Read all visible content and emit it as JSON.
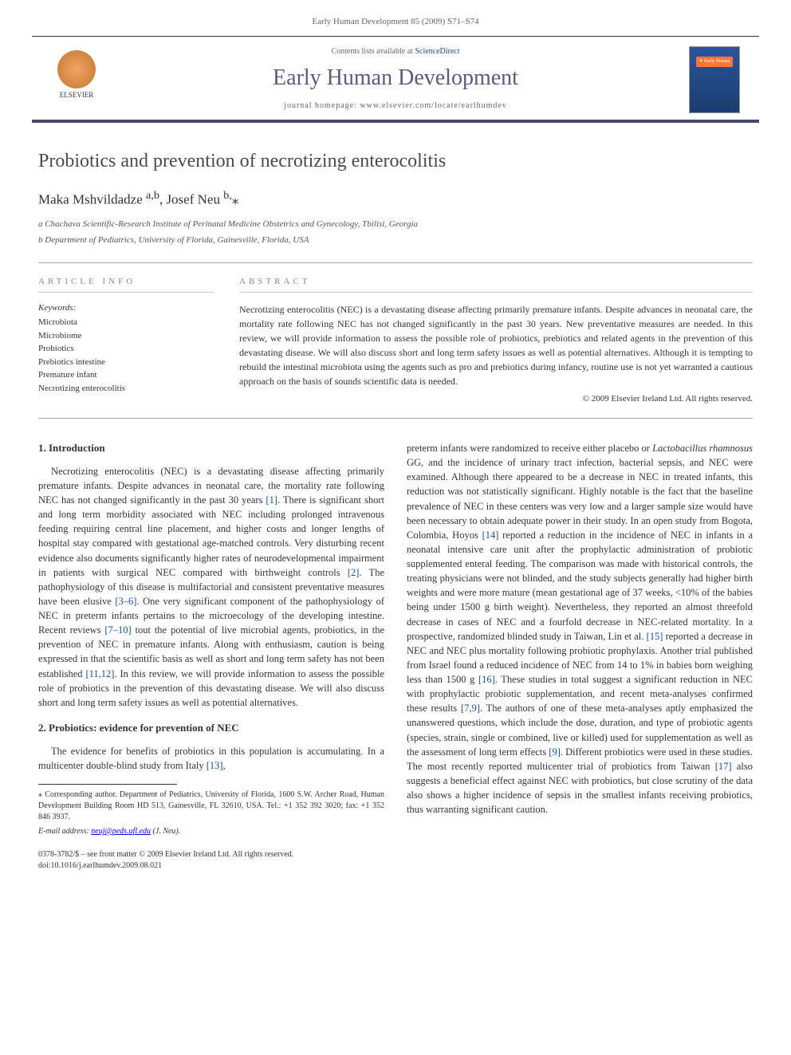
{
  "running_header": "Early Human Development 85 (2009) S71–S74",
  "banner": {
    "contents_line_prefix": "Contents lists available at ",
    "contents_link": "ScienceDirect",
    "journal_name": "Early Human Development",
    "homepage_prefix": "journal homepage: ",
    "homepage": "www.elsevier.com/locate/earlhumdev",
    "publisher": "ELSEVIER"
  },
  "article": {
    "title": "Probiotics and prevention of necrotizing enterocolitis",
    "authors_html": "Maka Mshvildadze <sup>a,b</sup>, Josef Neu <sup>b,</sup><span class='star'>⁎</span>",
    "affiliations": [
      "a Chachava Scientific-Research Institute of Perinatal Medicine Obstetrics and Gynecology, Tbilisi, Georgia",
      "b Department of Pediatrics, University of Florida, Gainesville, Florida, USA"
    ]
  },
  "info": {
    "heading": "ARTICLE INFO",
    "keywords_label": "Keywords:",
    "keywords": [
      "Microbiota",
      "Microbiome",
      "Probiotics",
      "Prebiotics intestine",
      "Premature infant",
      "Necrotizing enterocolitis"
    ]
  },
  "abstract": {
    "heading": "ABSTRACT",
    "text": "Necrotizing enterocolitis (NEC) is a devastating disease affecting primarily premature infants. Despite advances in neonatal care, the mortality rate following NEC has not changed significantly in the past 30 years. New preventative measures are needed. In this review, we will provide information to assess the possible role of probiotics, prebiotics and related agents in the prevention of this devastating disease. We will also discuss short and long term safety issues as well as potential alternatives. Although it is tempting to rebuild the intestinal microbiota using the agents such as pro and prebiotics during infancy, routine use is not yet warranted a cautious approach on the basis of sounds scientific data is needed.",
    "copyright": "© 2009 Elsevier Ireland Ltd. All rights reserved."
  },
  "body": {
    "section1": {
      "heading": "1. Introduction",
      "p1": "Necrotizing enterocolitis (NEC) is a devastating disease affecting primarily premature infants. Despite advances in neonatal care, the mortality rate following NEC has not changed significantly in the past 30 years [1]. There is significant short and long term morbidity associated with NEC including prolonged intravenous feeding requiring central line placement, and higher costs and longer lengths of hospital stay compared with gestational age-matched controls. Very disturbing recent evidence also documents significantly higher rates of neurodevelopmental impairment in patients with surgical NEC compared with birthweight controls [2]. The pathophysiology of this disease is multifactorial and consistent preventative measures have been elusive [3–6]. One very significant component of the pathophysiology of NEC in preterm infants pertains to the microecology of the developing intestine. Recent reviews [7–10] tout the potential of live microbial agents, probiotics, in the prevention of NEC in premature infants. Along with enthusiasm, caution is being expressed in that the scientific basis as well as short and long term safety has not been established [11,12]. In this review, we will provide information to assess the possible role of probiotics in the prevention of this devastating disease. We will also discuss short and long term safety issues as well as potential alternatives."
    },
    "section2": {
      "heading": "2. Probiotics: evidence for prevention of NEC",
      "p1": "The evidence for benefits of probiotics in this population is accumulating. In a multicenter double-blind study from Italy [13],",
      "p2": "preterm infants were randomized to receive either placebo or Lactobacillus rhamnosus GG, and the incidence of urinary tract infection, bacterial sepsis, and NEC were examined. Although there appeared to be a decrease in NEC in treated infants, this reduction was not statistically significant. Highly notable is the fact that the baseline prevalence of NEC in these centers was very low and a larger sample size would have been necessary to obtain adequate power in their study. In an open study from Bogota, Colombia, Hoyos [14] reported a reduction in the incidence of NEC in infants in a neonatal intensive care unit after the prophylactic administration of probiotic supplemented enteral feeding. The comparison was made with historical controls, the treating physicians were not blinded, and the study subjects generally had higher birth weights and were more mature (mean gestational age of 37 weeks, <10% of the babies being under 1500 g birth weight). Nevertheless, they reported an almost threefold decrease in cases of NEC and a fourfold decrease in NEC-related mortality. In a prospective, randomized blinded study in Taiwan, Lin et al. [15] reported a decrease in NEC and NEC plus mortality following probiotic prophylaxis. Another trial published from Israel found a reduced incidence of NEC from 14 to 1% in babies born weighing less than 1500 g [16]. These studies in total suggest a significant reduction in NEC with prophylactic probiotic supplementation, and recent meta-analyses confirmed these results [7,9]. The authors of one of these meta-analyses aptly emphasized the unanswered questions, which include the dose, duration, and type of probiotic agents (species, strain, single or combined, live or killed) used for supplementation as well as the assessment of long term effects [9]. Different probiotics were used in these studies. The most recently reported multicenter trial of probiotics from Taiwan [17] also suggests a beneficial effect against NEC with probiotics, but close scrutiny of the data also shows a higher incidence of sepsis in the smallest infants receiving probiotics, thus warranting significant caution."
    }
  },
  "footnote": {
    "corr": "⁎ Corresponding author. Department of Pediatrics, University of Florida, 1600 S.W. Archer Road, Human Development Building Room HD 513, Gainesville, FL 32610, USA. Tel.: +1 352 392 3020; fax: +1 352 846 3937.",
    "email_label": "E-mail address:",
    "email": "neuj@peds.ufl.edu",
    "email_suffix": " (J. Neu)."
  },
  "footer": {
    "line1": "0378-3782/$ – see front matter © 2009 Elsevier Ireland Ltd. All rights reserved.",
    "line2": "doi:10.1016/j.earlhumdev.2009.08.021"
  }
}
